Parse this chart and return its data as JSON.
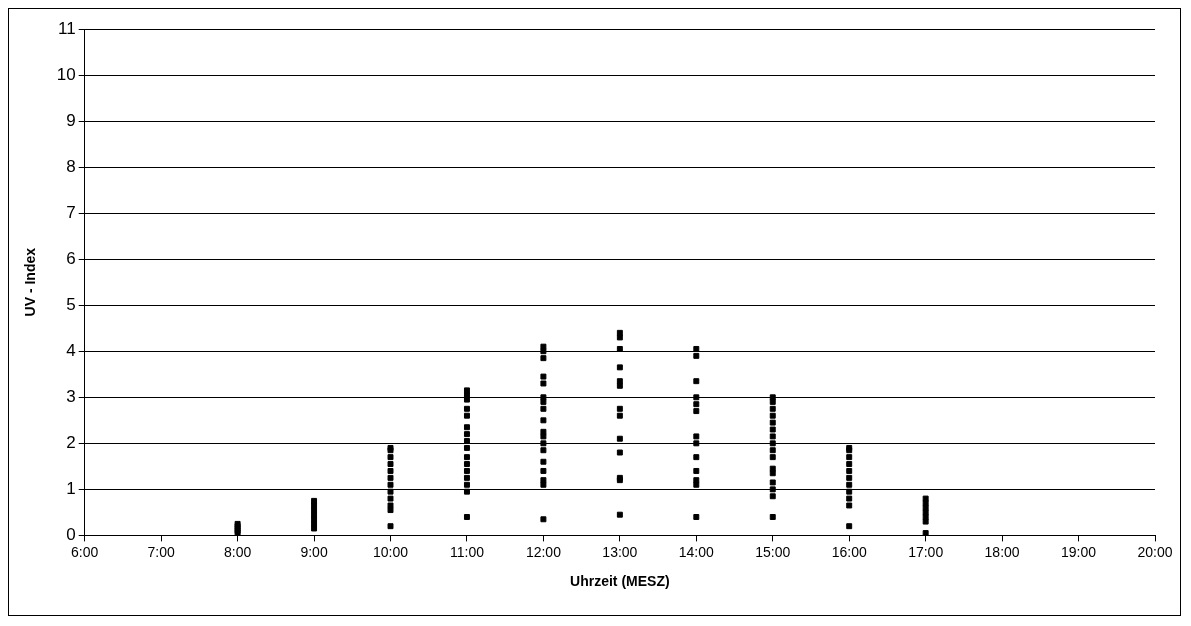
{
  "chart_data": {
    "type": "scatter",
    "xlabel": "Uhrzeit (MESZ)",
    "ylabel": "UV - Index",
    "marker": "square",
    "grid": "y",
    "legend": false,
    "xlim": [
      6,
      20
    ],
    "xticks": [
      {
        "value": 6,
        "label": "6:00"
      },
      {
        "value": 7,
        "label": "7:00"
      },
      {
        "value": 8,
        "label": "8:00"
      },
      {
        "value": 9,
        "label": "9:00"
      },
      {
        "value": 10,
        "label": "10:00"
      },
      {
        "value": 11,
        "label": "11:00"
      },
      {
        "value": 12,
        "label": "12:00"
      },
      {
        "value": 13,
        "label": "13:00"
      },
      {
        "value": 14,
        "label": "14:00"
      },
      {
        "value": 15,
        "label": "15:00"
      },
      {
        "value": 16,
        "label": "16:00"
      },
      {
        "value": 17,
        "label": "17:00"
      },
      {
        "value": 18,
        "label": "18:00"
      },
      {
        "value": 19,
        "label": "19:00"
      },
      {
        "value": 20,
        "label": "20:00"
      }
    ],
    "ylim": [
      0,
      11
    ],
    "yticks": [
      0,
      1,
      2,
      3,
      4,
      5,
      6,
      7,
      8,
      9,
      10,
      11
    ],
    "series": [
      {
        "color": "#000000",
        "x": [
          8,
          8,
          8,
          8,
          8,
          9,
          9,
          9,
          9,
          9,
          9,
          9,
          10,
          10,
          10,
          10,
          10,
          10,
          10,
          10,
          10,
          10,
          10,
          10,
          11,
          11,
          11,
          11,
          11,
          11,
          11,
          11,
          11,
          11,
          11,
          11,
          11,
          11,
          11,
          11,
          12,
          12,
          12,
          12,
          12,
          12,
          12,
          12,
          12,
          12,
          12,
          12,
          12,
          12,
          12,
          12,
          12,
          12,
          13,
          13,
          13,
          13,
          13,
          13,
          13,
          13,
          13,
          13,
          13,
          13,
          13,
          14,
          14,
          14,
          14,
          14,
          14,
          14,
          14,
          14,
          14,
          14,
          14,
          14,
          15,
          15,
          15,
          15,
          15,
          15,
          15,
          15,
          15,
          15,
          15,
          15,
          15,
          15,
          15,
          15,
          16,
          16,
          16,
          16,
          16,
          16,
          16,
          16,
          16,
          16,
          16,
          17,
          17,
          17,
          17,
          17,
          17,
          17
        ],
        "values": [
          0.05,
          0.1,
          0.15,
          0.2,
          0.25,
          0.15,
          0.25,
          0.35,
          0.45,
          0.55,
          0.65,
          0.75,
          0.2,
          0.55,
          0.65,
          0.8,
          0.95,
          1.1,
          1.25,
          1.4,
          1.55,
          1.7,
          1.85,
          1.9,
          0.4,
          0.95,
          1.1,
          1.25,
          1.4,
          1.55,
          1.7,
          1.9,
          2.05,
          2.2,
          2.35,
          2.6,
          2.75,
          2.95,
          3.05,
          3.15,
          0.35,
          1.1,
          1.2,
          1.4,
          1.6,
          1.85,
          2.0,
          2.15,
          2.25,
          2.5,
          2.75,
          2.9,
          3.0,
          3.3,
          3.45,
          3.85,
          4.0,
          4.1,
          0.45,
          1.2,
          1.25,
          1.8,
          2.1,
          2.6,
          2.75,
          3.25,
          3.35,
          3.65,
          4.05,
          4.3,
          4.4,
          0.4,
          1.1,
          1.2,
          1.4,
          1.7,
          2.0,
          2.15,
          2.7,
          2.85,
          3.0,
          3.35,
          3.9,
          4.05,
          0.4,
          0.85,
          1.0,
          1.15,
          1.35,
          1.45,
          1.7,
          1.85,
          2.0,
          2.15,
          2.3,
          2.45,
          2.6,
          2.75,
          2.9,
          3.0,
          0.2,
          0.65,
          0.8,
          0.95,
          1.1,
          1.25,
          1.4,
          1.55,
          1.7,
          1.85,
          1.9,
          0.05,
          0.3,
          0.4,
          0.5,
          0.6,
          0.7,
          0.8
        ]
      }
    ]
  }
}
